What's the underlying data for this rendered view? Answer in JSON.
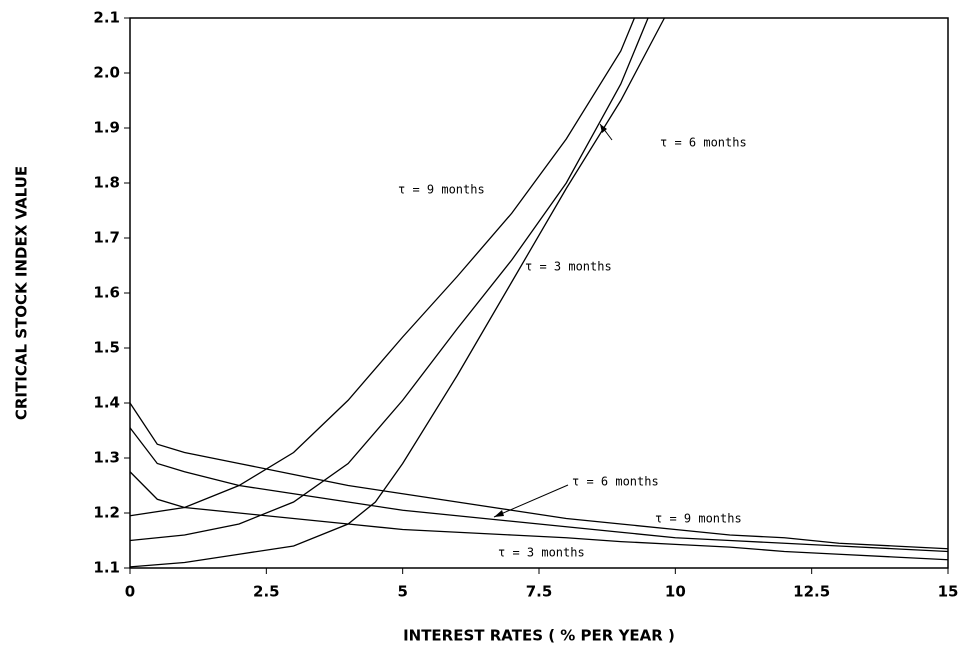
{
  "chart_data": {
    "type": "line",
    "xlabel": "INTEREST RATES ( % PER YEAR )",
    "ylabel": "CRITICAL STOCK INDEX VALUE",
    "xlim": [
      0,
      15
    ],
    "xticks": [
      0,
      2.5,
      5,
      7.5,
      10,
      12.5,
      15
    ],
    "ylim": [
      1.1,
      2.1
    ],
    "yticks": [
      1.1,
      1.2,
      1.3,
      1.4,
      1.5,
      1.6,
      1.7,
      1.8,
      1.9,
      {
        "value": 2,
        "label": "2.0"
      },
      2.1
    ],
    "color": "#000000",
    "series": [
      {
        "name": "τ = 9 months",
        "x": [
          0,
          1,
          2,
          3,
          4,
          5,
          6,
          7,
          8,
          9,
          9.25
        ],
        "values": [
          1.195,
          1.21,
          1.25,
          1.31,
          1.405,
          1.52,
          1.63,
          1.745,
          1.88,
          2.04,
          2.1
        ]
      },
      {
        "name": "τ = 6 months",
        "x": [
          0,
          1,
          2,
          3,
          4,
          5,
          6,
          7,
          8,
          9,
          9.5
        ],
        "values": [
          1.15,
          1.16,
          1.18,
          1.22,
          1.29,
          1.405,
          1.535,
          1.66,
          1.8,
          1.98,
          2.1
        ]
      },
      {
        "name": "τ = 3 months",
        "x": [
          0,
          1,
          2,
          3,
          3.5,
          4,
          4.5,
          5,
          6,
          7,
          8,
          9,
          9.8
        ],
        "values": [
          1.102,
          1.11,
          1.125,
          1.14,
          1.16,
          1.18,
          1.22,
          1.29,
          1.45,
          1.62,
          1.79,
          1.95,
          2.1
        ]
      },
      {
        "name": "τ = 9 months",
        "x": [
          0,
          0.5,
          1,
          2,
          3,
          4,
          5,
          6,
          7,
          8,
          9,
          10,
          11,
          12,
          13,
          14,
          15
        ],
        "values": [
          1.4,
          1.325,
          1.31,
          1.29,
          1.27,
          1.25,
          1.235,
          1.22,
          1.205,
          1.19,
          1.18,
          1.17,
          1.16,
          1.155,
          1.145,
          1.14,
          1.135
        ]
      },
      {
        "name": "τ = 6 months",
        "x": [
          0,
          0.5,
          1,
          2,
          3,
          4,
          5,
          6,
          7,
          8,
          9,
          10,
          11,
          12,
          13,
          14,
          15
        ],
        "values": [
          1.355,
          1.29,
          1.275,
          1.25,
          1.235,
          1.22,
          1.205,
          1.195,
          1.185,
          1.175,
          1.165,
          1.155,
          1.15,
          1.145,
          1.14,
          1.135,
          1.13
        ]
      },
      {
        "name": "τ = 3 months",
        "x": [
          0,
          0.5,
          1,
          2,
          3,
          4,
          5,
          6,
          7,
          8,
          9,
          10,
          11,
          12,
          13,
          14,
          15
        ],
        "values": [
          1.275,
          1.225,
          1.21,
          1.2,
          1.19,
          1.18,
          1.17,
          1.165,
          1.16,
          1.155,
          1.148,
          1.143,
          1.138,
          1.13,
          1.125,
          1.12,
          1.115
        ]
      }
    ]
  }
}
